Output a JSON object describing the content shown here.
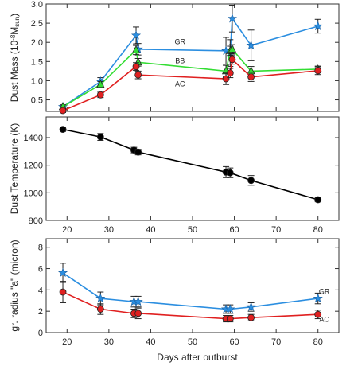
{
  "chart_data": [
    {
      "type": "line",
      "ylabel": "Dust Mass (10",
      "ylabel_exp": "-8",
      "ylabel_mid": "M",
      "ylabel_sub": "sun",
      "ylabel_end": ")",
      "xlim": [
        15,
        85
      ],
      "ylim": [
        0.2,
        3.0
      ],
      "xticks": [
        20,
        30,
        40,
        50,
        60,
        70,
        80
      ],
      "yticks": [
        0.5,
        1.0,
        1.5,
        2.0,
        2.5,
        3.0
      ],
      "yticklabels": [
        "0.5",
        "1.0",
        "1.5",
        "2.0",
        "2.5",
        "3.0"
      ],
      "show_xticklabels": false,
      "series": [
        {
          "name": "GR",
          "color": "#2b8ee0",
          "marker": "star",
          "x": [
            19,
            28,
            36.5,
            37,
            58,
            59,
            59.5,
            64,
            80
          ],
          "y": [
            0.32,
            0.98,
            2.18,
            1.82,
            1.78,
            1.72,
            2.62,
            1.92,
            2.42
          ],
          "err": [
            0.05,
            0.1,
            0.22,
            0.15,
            0.35,
            0.35,
            0.35,
            0.4,
            0.18
          ]
        },
        {
          "name": "BB",
          "color": "#33dd33",
          "marker": "triangle",
          "x": [
            19,
            28,
            36.5,
            37,
            58,
            59,
            59.5,
            64,
            80
          ],
          "y": [
            0.32,
            0.9,
            1.8,
            1.48,
            1.25,
            1.78,
            1.82,
            1.25,
            1.3
          ],
          "err": [
            0.05,
            0.08,
            0.12,
            0.1,
            0.15,
            0.12,
            0.12,
            0.12,
            0.08
          ]
        },
        {
          "name": "AC",
          "color": "#e02020",
          "marker": "circle",
          "x": [
            19,
            28,
            36.5,
            37,
            58,
            59,
            59.5,
            64,
            80
          ],
          "y": [
            0.22,
            0.63,
            1.37,
            1.15,
            1.05,
            1.2,
            1.55,
            1.1,
            1.26
          ],
          "err": [
            0.05,
            0.07,
            0.1,
            0.1,
            0.15,
            0.12,
            0.12,
            0.12,
            0.1
          ]
        }
      ],
      "labels": [
        {
          "text": "GR",
          "x": 47,
          "y": 1.95
        },
        {
          "text": "BB",
          "x": 47,
          "y": 1.45
        },
        {
          "text": "AC",
          "x": 47,
          "y": 0.85
        }
      ]
    },
    {
      "type": "line",
      "ylabel": "Dust Temperature (K)",
      "xlim": [
        15,
        85
      ],
      "ylim": [
        800,
        1550
      ],
      "xticks": [
        20,
        30,
        40,
        50,
        60,
        70,
        80
      ],
      "yticks": [
        800,
        1000,
        1200,
        1400
      ],
      "yticklabels": [
        "800",
        "1000",
        "1200",
        "1400"
      ],
      "show_xticklabels": true,
      "xticklabels": [
        "20",
        "30",
        "40",
        "50",
        "60",
        "70",
        "80"
      ],
      "series": [
        {
          "color": "#000000",
          "marker": "circle",
          "x": [
            19,
            28,
            36,
            37,
            58,
            59,
            64,
            80
          ],
          "y": [
            1460,
            1405,
            1310,
            1295,
            1150,
            1145,
            1090,
            950
          ],
          "err": [
            15,
            25,
            20,
            20,
            40,
            35,
            35,
            15
          ]
        }
      ],
      "labels": []
    },
    {
      "type": "line",
      "ylabel": "gr. radius \"a\" (micron)",
      "xlim": [
        15,
        85
      ],
      "ylim": [
        0,
        8.8
      ],
      "xticks": [
        20,
        30,
        40,
        50,
        60,
        70,
        80
      ],
      "yticks": [
        0,
        2,
        4,
        6,
        8
      ],
      "yticklabels": [
        "0",
        "2",
        "4",
        "6",
        "8"
      ],
      "show_xticklabels": true,
      "xticklabels": [
        "20",
        "30",
        "40",
        "50",
        "60",
        "70",
        "80"
      ],
      "series": [
        {
          "name": "GR",
          "color": "#2b8ee0",
          "marker": "star",
          "x": [
            19,
            28,
            36,
            37,
            58,
            59,
            64,
            80
          ],
          "y": [
            5.6,
            3.2,
            2.9,
            2.9,
            2.2,
            2.2,
            2.4,
            3.2
          ],
          "err": [
            0.9,
            0.6,
            0.5,
            0.5,
            0.4,
            0.4,
            0.4,
            0.5
          ]
        },
        {
          "name": "AC",
          "color": "#e02020",
          "marker": "circle",
          "x": [
            19,
            28,
            36,
            37,
            58,
            59,
            64,
            80
          ],
          "y": [
            3.8,
            2.2,
            1.8,
            1.8,
            1.3,
            1.3,
            1.4,
            1.7
          ],
          "err": [
            1.0,
            0.5,
            0.4,
            0.5,
            0.3,
            0.3,
            0.3,
            0.4
          ]
        }
      ],
      "labels": [
        {
          "text": "GR",
          "x": 81.5,
          "y": 3.6
        },
        {
          "text": "AC",
          "x": 81.5,
          "y": 1.0
        }
      ]
    }
  ],
  "xlabel": "Days after outburst"
}
